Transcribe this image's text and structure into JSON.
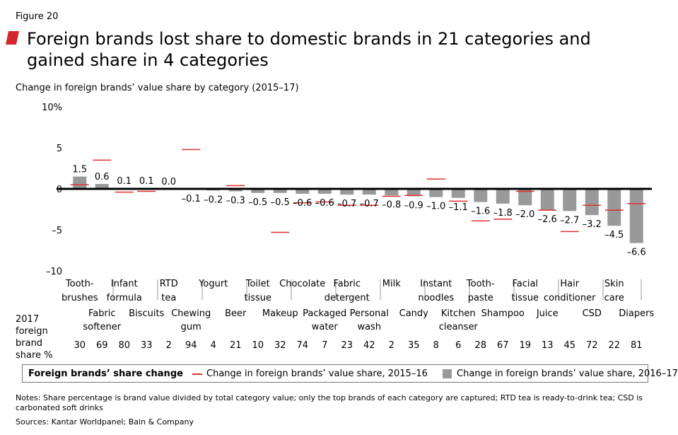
{
  "figure_label": "Figure 20",
  "title": "Foreign brands lost share to domestic brands in 21 categories and gained share in 4 categories",
  "subtitle": "Change in foreign brands’ value share by category (2015–17)",
  "colors": {
    "bar": "#999999",
    "line_marker": "#e03030",
    "accent": "#d0282d"
  },
  "row_label": "2017 foreign brand share %",
  "legend": {
    "title": "Foreign brands’ share change",
    "item_line": "Change in foreign brands’ value share, 2015–16",
    "item_bar": "Change in foreign brands’ value share, 2016–17"
  },
  "notes": "Notes: Share percentage is brand value divided by total category value; only the top brands of each category are captured; RTD tea is ready-to-drink tea; CSD is carbonated soft drinks",
  "sources": "Sources: Kantar Worldpanel; Bain & Company",
  "chart_data": {
    "type": "bar",
    "ylim": [
      -10,
      10
    ],
    "yticks": [
      "10%",
      "5",
      "0",
      "–5",
      "–10"
    ],
    "categories": [
      "Tooth-brushes",
      "Fabric softener",
      "Infant formula",
      "Biscuits",
      "RTD tea",
      "Chewing gum",
      "Yogurt",
      "Beer",
      "Toilet tissue",
      "Makeup",
      "Chocolate",
      "Packaged water",
      "Fabric detergent",
      "Personal wash",
      "Milk",
      "Candy",
      "Instant noodles",
      "Kitchen cleanser",
      "Tooth-paste",
      "Shampoo",
      "Facial tissue",
      "Juice",
      "Hair conditioner",
      "CSD",
      "Skin care",
      "Diapers"
    ],
    "series": [
      {
        "name": "Change in foreign brands’ value share, 2016–17",
        "values": [
          1.5,
          0.6,
          0.1,
          0.1,
          0.0,
          -0.1,
          -0.2,
          -0.3,
          -0.5,
          -0.5,
          -0.6,
          -0.6,
          -0.7,
          -0.7,
          -0.8,
          -0.9,
          -1.0,
          -1.1,
          -1.6,
          -1.8,
          -2.0,
          -2.6,
          -2.7,
          -3.2,
          -4.5,
          -6.6
        ]
      },
      {
        "name": "Change in foreign brands’ value share, 2015–16",
        "values": [
          0.5,
          3.5,
          -0.4,
          -0.3,
          null,
          4.8,
          null,
          0.4,
          null,
          -5.3,
          -1.7,
          -1.6,
          -2.0,
          -2.0,
          -0.9,
          -0.8,
          1.2,
          -1.5,
          -3.9,
          -3.7,
          -0.3,
          -2.6,
          -5.2,
          -2.0,
          -2.6,
          -1.8
        ]
      }
    ],
    "value_labels": [
      "1.5",
      "0.6",
      "0.1",
      "0.1",
      "0.0",
      "–0.1",
      "–0.2",
      "–0.3",
      "–0.5",
      "–0.5",
      "–0.6",
      "–0.6",
      "–0.7",
      "–0.7",
      "–0.8",
      "–0.9",
      "–1.0",
      "–1.1",
      "–1.6",
      "–1.8",
      "–2.0",
      "–2.6",
      "–2.7",
      "–3.2",
      "–4.5",
      "–6.6"
    ],
    "share_2017": [
      30,
      69,
      80,
      33,
      2,
      94,
      4,
      21,
      10,
      32,
      74,
      7,
      23,
      42,
      2,
      35,
      8,
      6,
      28,
      67,
      19,
      13,
      45,
      72,
      22,
      81
    ],
    "category_labels_upper": [
      [
        "Tooth-",
        "brushes"
      ],
      [
        "Infant",
        "formula"
      ],
      [
        "RTD",
        "tea"
      ],
      [
        "Yogurt"
      ],
      [
        "Toilet",
        "tissue"
      ],
      [
        "Chocolate"
      ],
      [
        "Fabric",
        "detergent"
      ],
      [
        "Milk"
      ],
      [
        "Instant",
        "noodles"
      ],
      [
        "Tooth-",
        "paste"
      ],
      [
        "Facial",
        "tissue"
      ],
      [
        "Hair",
        "conditioner"
      ],
      [
        "Skin",
        "care"
      ]
    ],
    "category_labels_lower": [
      [
        "Fabric",
        "softener"
      ],
      [
        "Biscuits"
      ],
      [
        "Chewing",
        "gum"
      ],
      [
        "Beer"
      ],
      [
        "Makeup"
      ],
      [
        "Packaged",
        "water"
      ],
      [
        "Personal",
        "wash"
      ],
      [
        "Candy"
      ],
      [
        "Kitchen",
        "cleanser"
      ],
      [
        "Shampoo"
      ],
      [
        "Juice"
      ],
      [
        "CSD"
      ],
      [
        "Diapers"
      ]
    ]
  }
}
